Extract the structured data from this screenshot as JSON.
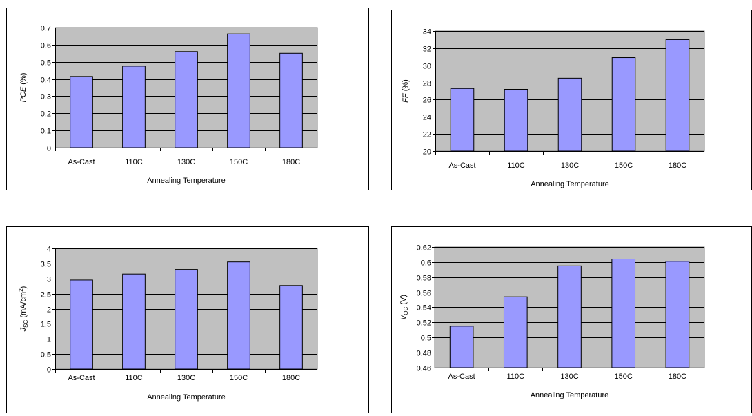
{
  "chart_data": [
    {
      "type": "bar",
      "categories": [
        "As-Cast",
        "110C",
        "130C",
        "150C",
        "180C"
      ],
      "values": [
        0.415,
        0.475,
        0.56,
        0.663,
        0.55
      ],
      "xlabel": "Annealing Temperature",
      "ylabel": {
        "main": "PCE",
        "sub": "",
        "unit": " (%)",
        "sup": ""
      },
      "ylim": [
        0,
        0.7
      ],
      "ystep": 0.1,
      "yticks": [
        "0",
        "0.1",
        "0.2",
        "0.3",
        "0.4",
        "0.5",
        "0.6",
        "0.7"
      ],
      "grid": true,
      "plot_bg": "#c0c0c0",
      "bar_color": "#9999ff"
    },
    {
      "type": "bar",
      "categories": [
        "As-Cast",
        "110C",
        "130C",
        "150C",
        "180C"
      ],
      "values": [
        27.3,
        27.2,
        28.5,
        30.9,
        33.0
      ],
      "xlabel": "Annealing Temperature",
      "ylabel": {
        "main": "FF",
        "sub": "",
        "unit": " (%)",
        "sup": ""
      },
      "ylim": [
        20,
        34
      ],
      "ystep": 2,
      "yticks": [
        "20",
        "22",
        "24",
        "26",
        "28",
        "30",
        "32",
        "34"
      ],
      "grid": true,
      "plot_bg": "#c0c0c0",
      "bar_color": "#9999ff"
    },
    {
      "type": "bar",
      "categories": [
        "As-Cast",
        "110C",
        "130C",
        "150C",
        "180C"
      ],
      "values": [
        2.95,
        3.15,
        3.3,
        3.55,
        2.77
      ],
      "xlabel": "Annealing Temperature",
      "ylabel": {
        "main": "J",
        "sub": "SC",
        "unit": " (mA/cm",
        "sup": "2",
        "close": ")"
      },
      "ylim": [
        0,
        4
      ],
      "ystep": 0.5,
      "yticks": [
        "0",
        "0.5",
        "1",
        "1.5",
        "2",
        "2.5",
        "3",
        "3.5",
        "4"
      ],
      "grid": true,
      "plot_bg": "#c0c0c0",
      "bar_color": "#9999ff"
    },
    {
      "type": "bar",
      "categories": [
        "As-Cast",
        "110C",
        "130C",
        "150C",
        "180C"
      ],
      "values": [
        0.515,
        0.554,
        0.595,
        0.604,
        0.601
      ],
      "xlabel": "Annealing Temperature",
      "ylabel": {
        "main": "V",
        "sub": "OC",
        "unit": " (V)",
        "sup": ""
      },
      "ylim": [
        0.46,
        0.62
      ],
      "ystep": 0.02,
      "yticks": [
        "0.46",
        "0.48",
        "0.5",
        "0.52",
        "0.54",
        "0.56",
        "0.58",
        "0.6",
        "0.62"
      ],
      "grid": true,
      "plot_bg": "#c0c0c0",
      "bar_color": "#9999ff"
    }
  ]
}
